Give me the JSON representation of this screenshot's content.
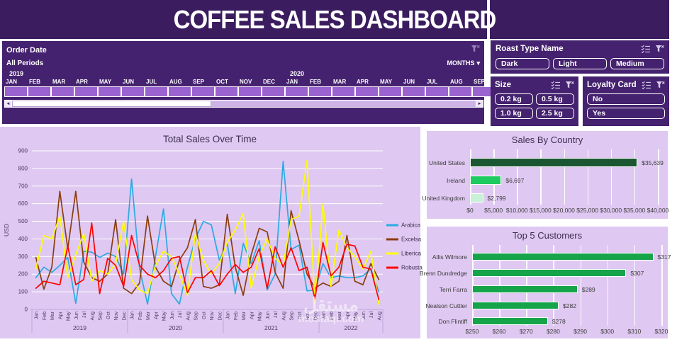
{
  "header": {
    "title": "COFFEE SALES DASHBOARD"
  },
  "icons": {
    "chevron_down": "▾",
    "scroll_left": "◄",
    "scroll_right": "►"
  },
  "timeline": {
    "title": "Order Date",
    "range_label": "All Periods",
    "granularity_label": "MONTHS",
    "year_groups": [
      {
        "year": "2019",
        "months": [
          "JAN",
          "FEB",
          "MAR",
          "APR",
          "MAY",
          "JUN",
          "JUL",
          "AUG",
          "SEP",
          "OCT",
          "NOV",
          "DEC"
        ]
      },
      {
        "year": "2020",
        "months": [
          "JAN",
          "FEB",
          "MAR",
          "APR",
          "MAY",
          "JUN",
          "JUL",
          "AUG",
          "SEP"
        ]
      }
    ]
  },
  "slicers": [
    {
      "id": "roast",
      "title": "Roast Type Name",
      "options": [
        "Dark",
        "Light",
        "Medium"
      ]
    },
    {
      "id": "size",
      "title": "Size",
      "options": [
        "0.2 kg",
        "0.5 kg",
        "1.0 kg",
        "2.5 kg"
      ]
    },
    {
      "id": "loyalty",
      "title": "Loyalty Card",
      "options": [
        "No",
        "Yes"
      ]
    }
  ],
  "chart_data": [
    {
      "type": "line",
      "title": "Total Sales Over Time",
      "xlabel": "",
      "ylabel": "USD",
      "ylim": [
        0,
        900
      ],
      "y_ticks": [
        0,
        100,
        200,
        300,
        400,
        500,
        600,
        700,
        800,
        900
      ],
      "grid": true,
      "legend_position": "right",
      "x_year_groups": [
        {
          "label": "2019",
          "n": 12
        },
        {
          "label": "2020",
          "n": 12
        },
        {
          "label": "2021",
          "n": 12
        },
        {
          "label": "2022",
          "n": 8
        }
      ],
      "x_month_labels": [
        "Jan",
        "Feb",
        "Mar",
        "Apr",
        "May",
        "Jun",
        "Jul",
        "Aug",
        "Sep",
        "Oct",
        "Nov",
        "Dec",
        "Jan",
        "Feb",
        "Mar",
        "Apr",
        "May",
        "Jun",
        "Jul",
        "Aug",
        "Sep",
        "Oct",
        "Nov",
        "Dec",
        "Jan",
        "Feb",
        "Mar",
        "Apr",
        "May",
        "Jun",
        "Jul",
        "Aug",
        "Sep",
        "Oct",
        "Nov",
        "Dec",
        "Jan",
        "Feb",
        "Mar",
        "Apr",
        "May",
        "Jun",
        "Jul",
        "Aug"
      ],
      "series": [
        {
          "name": "Arabica",
          "color": "#29ABE2",
          "values": [
            180,
            240,
            210,
            250,
            295,
            35,
            330,
            325,
            295,
            320,
            300,
            200,
            740,
            230,
            30,
            300,
            570,
            90,
            30,
            240,
            400,
            500,
            480,
            280,
            375,
            90,
            375,
            260,
            390,
            110,
            200,
            840,
            340,
            365,
            105,
            110,
            260,
            180,
            190,
            180,
            180,
            190,
            230,
            100
          ]
        },
        {
          "name": "Excelsa",
          "color": "#8B3D0E",
          "values": [
            295,
            115,
            240,
            670,
            345,
            670,
            270,
            180,
            160,
            200,
            510,
            120,
            90,
            150,
            530,
            240,
            160,
            130,
            280,
            350,
            510,
            130,
            120,
            140,
            540,
            240,
            80,
            310,
            460,
            440,
            210,
            120,
            560,
            390,
            200,
            120,
            150,
            130,
            160,
            420,
            160,
            140,
            260,
            170
          ]
        },
        {
          "name": "Liberica",
          "color": "#FFFF00",
          "values": [
            230,
            420,
            400,
            530,
            180,
            310,
            430,
            160,
            220,
            200,
            260,
            500,
            170,
            110,
            90,
            250,
            330,
            300,
            200,
            80,
            430,
            280,
            200,
            260,
            380,
            450,
            545,
            120,
            300,
            400,
            290,
            250,
            510,
            530,
            845,
            40,
            600,
            130,
            450,
            350,
            300,
            230,
            330,
            30
          ]
        },
        {
          "name": "Robusta",
          "color": "#FF0000",
          "values": [
            120,
            160,
            150,
            140,
            360,
            140,
            170,
            490,
            90,
            290,
            250,
            130,
            420,
            250,
            200,
            180,
            220,
            290,
            300,
            95,
            180,
            180,
            220,
            135,
            200,
            255,
            210,
            240,
            345,
            120,
            355,
            240,
            350,
            220,
            240,
            60,
            380,
            190,
            240,
            370,
            360,
            240,
            230,
            55
          ]
        }
      ]
    },
    {
      "type": "bar",
      "orientation": "horizontal",
      "title": "Sales By Country",
      "categories": [
        "United States",
        "Ireland",
        "United Kingdom"
      ],
      "values": [
        35639,
        6697,
        2799
      ],
      "value_labels": [
        "$35,639",
        "$6,697",
        "$2,799"
      ],
      "bar_colors": [
        "#1A5632",
        "#1ECB61",
        "#C7F2D8"
      ],
      "xlim": [
        0,
        40000
      ],
      "x_tick_labels": [
        "$0",
        "$5,000",
        "$10,000",
        "$15,000",
        "$20,000",
        "$25,000",
        "$30,000",
        "$35,000",
        "$40,000"
      ],
      "grid": true
    },
    {
      "type": "bar",
      "orientation": "horizontal",
      "title": "Top 5 Customers",
      "categories": [
        "Allis Wilmore",
        "Brenn Dundredge",
        "Terri Farra",
        "Nealson Cuttler",
        "Don Flintiff"
      ],
      "values": [
        317,
        307,
        289,
        282,
        278
      ],
      "value_labels": [
        "$317",
        "$307",
        "$289",
        "$282",
        "$278"
      ],
      "bar_colors": [
        "#16A44A",
        "#16A44A",
        "#16A44A",
        "#16A44A",
        "#16A44A"
      ],
      "xlim": [
        250,
        320
      ],
      "x_tick_labels": [
        "$250",
        "$260",
        "$270",
        "$280",
        "$290",
        "$300",
        "$310",
        "$320"
      ],
      "grid": true
    }
  ],
  "watermark": {
    "line1": "مستقل",
    "line2": "mostaql.com"
  }
}
